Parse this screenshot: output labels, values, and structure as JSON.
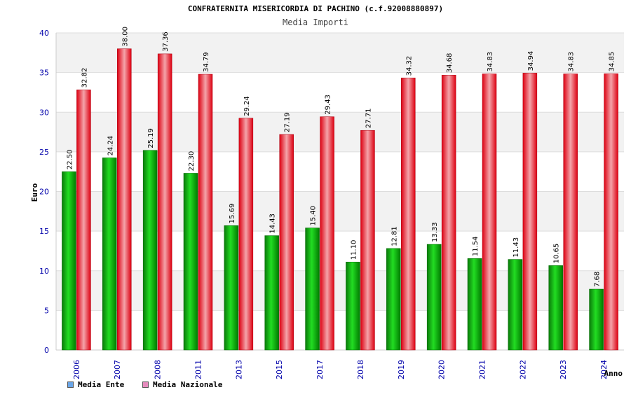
{
  "header": {
    "title": "CONFRATERNITA MISERICORDIA DI PACHINO (c.f.92008880897)",
    "subtitle": "Media Importi"
  },
  "colors": {
    "ente": "#00b000",
    "nazionale": "#ee1122",
    "legend_ente": "#6aa6e8",
    "legend_nazionale": "#e58bbd",
    "tick_text": "#0000aa"
  },
  "chart_data": {
    "type": "bar",
    "ylabel": "Euro",
    "xlabel": "Anno",
    "ylim": [
      0,
      40
    ],
    "yticks": [
      0,
      5,
      10,
      15,
      20,
      25,
      30,
      35,
      40
    ],
    "categories": [
      "2006",
      "2007",
      "2008",
      "2011",
      "2013",
      "2015",
      "2017",
      "2018",
      "2019",
      "2020",
      "2021",
      "2022",
      "2023",
      "2024"
    ],
    "series": [
      {
        "name": "Media Ente",
        "values": [
          22.5,
          24.24,
          25.19,
          22.3,
          15.69,
          14.43,
          15.4,
          11.1,
          12.81,
          13.33,
          11.54,
          11.43,
          10.65,
          7.68
        ],
        "labels": [
          "22.50",
          "24.24",
          "25.19",
          "22.30",
          "15.69",
          "14.43",
          "15.40",
          "11.10",
          "12.81",
          "13.33",
          "11.54",
          "11.43",
          "10.65",
          "7.68"
        ]
      },
      {
        "name": "Media Nazionale",
        "values": [
          32.82,
          38.0,
          37.36,
          34.79,
          29.24,
          27.19,
          29.43,
          27.71,
          34.32,
          34.68,
          34.83,
          34.94,
          34.83,
          34.85
        ],
        "labels": [
          "32.82",
          "38.00",
          "37.36",
          "34.79",
          "29.24",
          "27.19",
          "29.43",
          "27.71",
          "34.32",
          "34.68",
          "34.83",
          "34.94",
          "34.83",
          "34.85"
        ]
      }
    ],
    "grid": true,
    "legend_position": "bottom-left"
  }
}
